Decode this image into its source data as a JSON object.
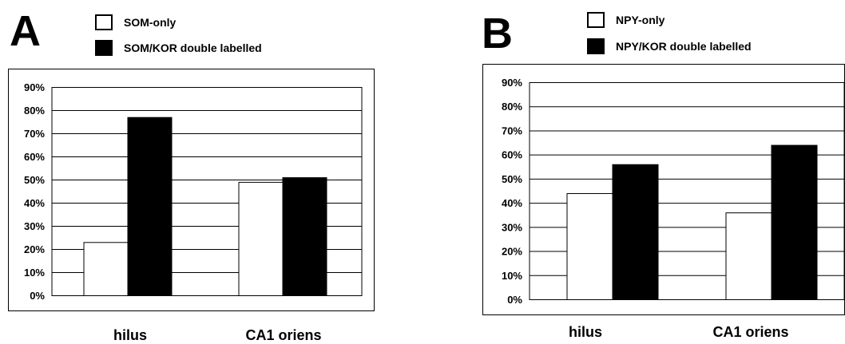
{
  "chart_data": [
    {
      "panel_label": "A",
      "type": "bar",
      "categories": [
        "hilus",
        "CA1 oriens"
      ],
      "series": [
        {
          "name": "SOM-only",
          "color": "#ffffff",
          "values": [
            23,
            49
          ]
        },
        {
          "name": "SOM/KOR double labelled",
          "color": "#000000",
          "values": [
            77,
            51
          ]
        }
      ],
      "yticks": [
        "0%",
        "10%",
        "20%",
        "30%",
        "40%",
        "50%",
        "60%",
        "70%",
        "80%",
        "90%"
      ],
      "ylim": [
        0,
        90
      ],
      "grid": true,
      "legend_position": "top"
    },
    {
      "panel_label": "B",
      "type": "bar",
      "categories": [
        "hilus",
        "CA1 oriens"
      ],
      "series": [
        {
          "name": "NPY-only",
          "color": "#ffffff",
          "values": [
            44,
            36
          ]
        },
        {
          "name": "NPY/KOR double labelled",
          "color": "#000000",
          "values": [
            56,
            64
          ]
        }
      ],
      "yticks": [
        "0%",
        "10%",
        "20%",
        "30%",
        "40%",
        "50%",
        "60%",
        "70%",
        "80%",
        "90%"
      ],
      "ylim": [
        0,
        90
      ],
      "grid": true,
      "legend_position": "top"
    }
  ]
}
